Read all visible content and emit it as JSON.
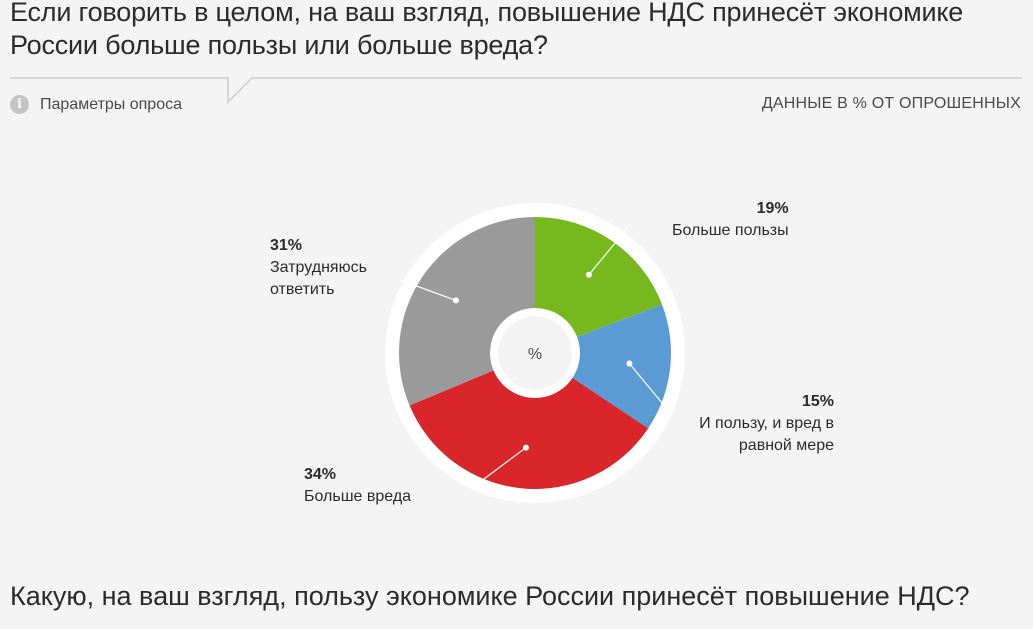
{
  "header": {
    "title": "Если говорить в целом, на ваш взгляд, повышение НДС принесёт экономике России больше пользы или больше вреда?",
    "params_label": "Параметры опроса",
    "units_label": "ДАННЫЕ В % ОТ ОПРОШЕННЫХ"
  },
  "icons": {
    "info": "info-icon"
  },
  "chart_data": {
    "type": "pie",
    "center_label": "%",
    "slices": [
      {
        "label": "Больше пользы",
        "value": 19,
        "value_label": "19%",
        "color": "#77b81f"
      },
      {
        "label": "И пользу, и вред в равной мере",
        "value": 15,
        "value_label": "15%",
        "color": "#5b9bd5"
      },
      {
        "label": "Больше вреда",
        "value": 34,
        "value_label": "34%",
        "color": "#d9262a"
      },
      {
        "label": "Затрудняюсь ответить",
        "value": 31,
        "value_label": "31%",
        "color": "#9a9a9a"
      }
    ]
  },
  "next_question": {
    "title": "Какую, на ваш взгляд, пользу экономике России принесёт повышение НДС?"
  }
}
